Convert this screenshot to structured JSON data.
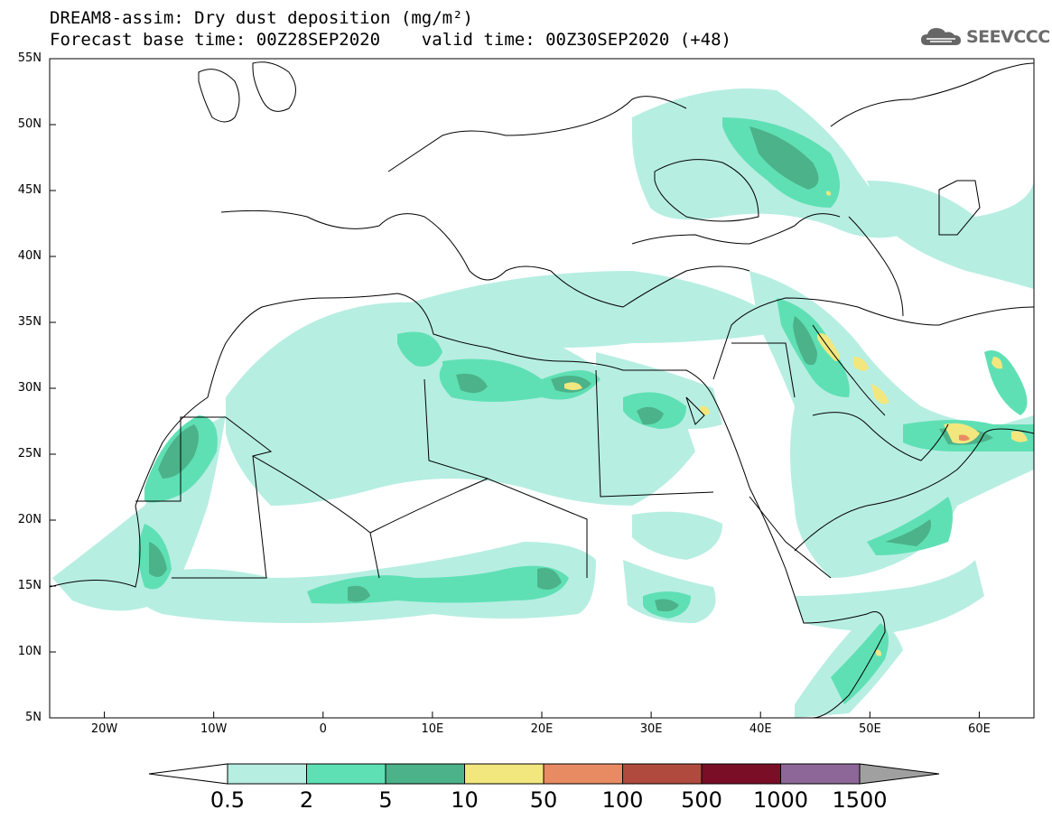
{
  "title": {
    "line1": "DREAM8-assim: Dry dust deposition (mg/m²)",
    "line2": "Forecast base time: 00Z28SEP2020    valid time: 00Z30SEP2020 (+48)"
  },
  "logo": {
    "text": "SEEVCCC",
    "icon": "cloud-logo-icon"
  },
  "map": {
    "projection": "lat-lon",
    "lon_range": [
      -25,
      65
    ],
    "lat_range": [
      5,
      55
    ],
    "lat_ticks": [
      "55N",
      "50N",
      "45N",
      "40N",
      "35N",
      "30N",
      "25N",
      "20N",
      "15N",
      "10N",
      "5N"
    ],
    "lon_ticks": [
      "20W",
      "10W",
      "0",
      "10E",
      "20E",
      "30E",
      "40E",
      "50E",
      "60E"
    ]
  },
  "colorbar": {
    "levels": [
      "0.5",
      "2",
      "5",
      "10",
      "50",
      "100",
      "500",
      "1000",
      "1500"
    ],
    "colors": [
      "#b7eee2",
      "#5fe0b4",
      "#4cb28a",
      "#f2e77e",
      "#e88b62",
      "#b04a3e",
      "#7a0e27",
      "#8c6798",
      "#a0a0a0"
    ],
    "under_color": "#ffffff",
    "over_color": "#a0a0a0"
  }
}
